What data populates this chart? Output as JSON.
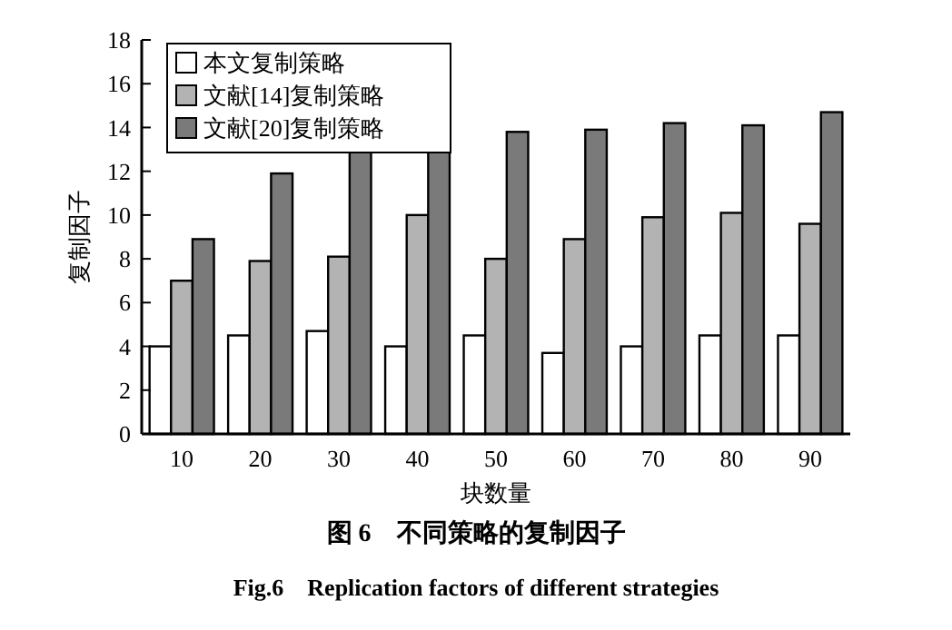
{
  "chart_data": {
    "type": "bar",
    "xlabel": "块数量",
    "ylabel": "复制因子",
    "categories": [
      "10",
      "20",
      "30",
      "40",
      "50",
      "60",
      "70",
      "80",
      "90"
    ],
    "series": [
      {
        "name": "本文复制策略",
        "color": "#ffffff",
        "values": [
          4,
          4.5,
          4.7,
          4,
          4.5,
          3.7,
          4,
          4.5,
          4.5
        ]
      },
      {
        "name": "文献[14]复制策略",
        "color": "#b3b3b3",
        "values": [
          7,
          7.9,
          8.1,
          10,
          8,
          8.9,
          9.9,
          10.1,
          9.6
        ]
      },
      {
        "name": "文献[20]复制策略",
        "color": "#7a7a7a",
        "values": [
          8.9,
          11.9,
          12.9,
          12.9,
          13.8,
          13.9,
          14.2,
          14.1,
          14.7
        ]
      }
    ],
    "ylim": [
      0,
      18
    ],
    "yticks": [
      0,
      2,
      4,
      6,
      8,
      10,
      12,
      14,
      16,
      18
    ],
    "legend": "top left",
    "annotations": [
      "图 6　不同策略的复制因子",
      "Fig.6　Replication factors of different strategies"
    ]
  }
}
